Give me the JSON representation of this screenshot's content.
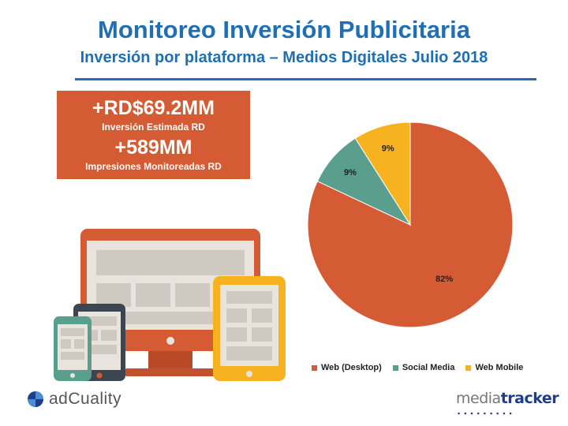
{
  "header": {
    "title": "Monitoreo Inversión Publicitaria",
    "subtitle": "Inversión por plataforma – Medios Digitales Julio 2018"
  },
  "stats": {
    "investment_value": "+RD$69.2MM",
    "investment_label": "Inversión Estimada RD",
    "impressions_value": "+589MM",
    "impressions_label": "Impresiones Monitoreadas RD"
  },
  "logos": {
    "adcuality": "adCuality",
    "mediatracker_part1": "media",
    "mediatracker_part2": "tracker"
  },
  "colors": {
    "brand_blue": "#1f6fb5",
    "accent_orange": "#d55b34",
    "web_desktop": "#d55b34",
    "social_media": "#5a9e8e",
    "web_mobile": "#f6b21f"
  },
  "chart_data": {
    "type": "pie",
    "title": "",
    "labels": [
      "Web (Desktop)",
      "Social Media",
      "Web Mobile"
    ],
    "values": [
      82,
      9,
      9
    ],
    "value_labels": [
      "82%",
      "9%",
      "9%"
    ],
    "colors": [
      "#d55b34",
      "#5a9e8e",
      "#f6b21f"
    ],
    "legend": "bottom"
  }
}
